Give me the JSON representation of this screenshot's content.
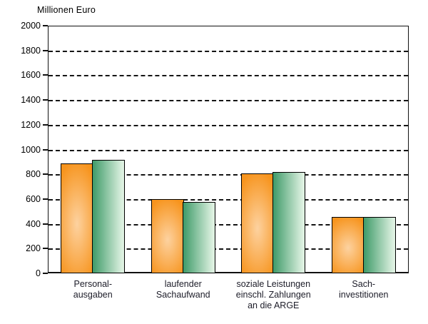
{
  "chart_data": {
    "type": "bar",
    "title": "Millionen Euro",
    "categories": [
      [
        "Personal-",
        "ausgaben"
      ],
      [
        "laufender",
        "Sachaufwand"
      ],
      [
        "soziale Leistungen",
        "einschl. Zahlungen",
        "an die ARGE"
      ],
      [
        "Sach-",
        "investitionen"
      ]
    ],
    "series": [
      {
        "name": "orange-series",
        "values": [
          890,
          600,
          805,
          455
        ],
        "fill_edge": "#F7941D",
        "fill_light": "#FDD2A0",
        "border": "#000000"
      },
      {
        "name": "green-series",
        "values": [
          915,
          575,
          820,
          455
        ],
        "fill_edge": "#3F9B69",
        "fill_light": "#DFF2E2",
        "border": "#000000"
      }
    ],
    "ylabel": "Millionen Euro",
    "xlabel": "",
    "ylim": [
      0,
      2000
    ],
    "ytick_step": 200,
    "yticks": [
      0,
      200,
      400,
      600,
      800,
      1000,
      1200,
      1400,
      1600,
      1800,
      2000
    ],
    "grid": "horizontal-dashed-black",
    "legend": "none",
    "plot_background": "#ffffff",
    "page_background": "#ffffff"
  }
}
